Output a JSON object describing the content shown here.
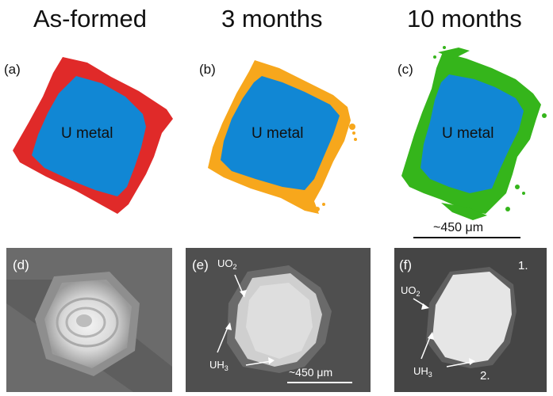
{
  "titles": {
    "col1": "As-formed",
    "col2": "3 months",
    "col3": "10 months"
  },
  "panels": {
    "a": "(a)",
    "b": "(b)",
    "c": "(c)",
    "d": "(d)",
    "e": "(e)",
    "f": "(f)"
  },
  "metal_label": "U metal",
  "scale": {
    "top": "~450 μm",
    "e": "~450 μm"
  },
  "annotations": {
    "e_uo2": "UO",
    "e_uo2_sub": "2",
    "e_uh3": "UH",
    "e_uh3_sub": "3",
    "f_uo2": "UO",
    "f_uo2_sub": "2",
    "f_uh3": "UH",
    "f_uh3_sub": "3",
    "f_pt1": "1.",
    "f_pt2": "2."
  },
  "colors": {
    "metal": "#1187d4",
    "as_formed": "#e02a29",
    "three_months": "#f7a71c",
    "ten_months": "#35b51b"
  }
}
